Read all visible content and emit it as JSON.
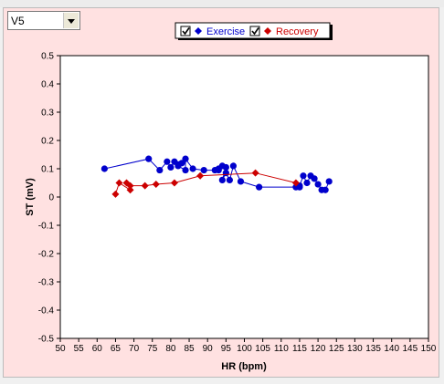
{
  "lead_select": {
    "value": "V5"
  },
  "legend": {
    "exercise_label": "Exercise",
    "recovery_label": "Recovery",
    "exercise_checked": true,
    "recovery_checked": true
  },
  "colors": {
    "exercise": "#0000cc",
    "recovery": "#cc0000",
    "panel_bg": "#ffe1e1",
    "plot_bg": "#ffffff"
  },
  "chart_data": {
    "type": "scatter",
    "xlabel": "HR (bpm)",
    "ylabel": "ST (mV)",
    "xlim": [
      50,
      150
    ],
    "ylim": [
      -0.5,
      0.5
    ],
    "xticks": [
      "50",
      "55",
      "60",
      "65",
      "70",
      "75",
      "80",
      "85",
      "90",
      "95",
      "100",
      "105",
      "110",
      "115",
      "120",
      "125",
      "130",
      "135",
      "140",
      "145",
      "150"
    ],
    "yticks": [
      "0.5",
      "0.4",
      "0.3",
      "0.2",
      "0.1",
      "0",
      "-0.1",
      "-0.2",
      "-0.3",
      "-0.4",
      "-0.5"
    ],
    "grid": false,
    "legend_position": "top-center",
    "series": [
      {
        "name": "Exercise",
        "color": "#0000cc",
        "marker": "circle",
        "points": [
          [
            62,
            0.1
          ],
          [
            74,
            0.135
          ],
          [
            77,
            0.095
          ],
          [
            79,
            0.125
          ],
          [
            80,
            0.105
          ],
          [
            81,
            0.125
          ],
          [
            82,
            0.115
          ],
          [
            83,
            0.12
          ],
          [
            82,
            0.11
          ],
          [
            84,
            0.095
          ],
          [
            84,
            0.135
          ],
          [
            86,
            0.1
          ],
          [
            89,
            0.095
          ],
          [
            92,
            0.095
          ],
          [
            93,
            0.1
          ],
          [
            93,
            0.095
          ],
          [
            94,
            0.11
          ],
          [
            95,
            0.105
          ],
          [
            94,
            0.06
          ],
          [
            95,
            0.085
          ],
          [
            96,
            0.06
          ],
          [
            97,
            0.11
          ],
          [
            99,
            0.055
          ],
          [
            104,
            0.035
          ],
          [
            114,
            0.035
          ],
          [
            115,
            0.035
          ],
          [
            115,
            0.04
          ],
          [
            116,
            0.075
          ],
          [
            117,
            0.05
          ],
          [
            118,
            0.075
          ],
          [
            119,
            0.065
          ],
          [
            120,
            0.045
          ],
          [
            121,
            0.025
          ],
          [
            122,
            0.025
          ],
          [
            123,
            0.055
          ]
        ]
      },
      {
        "name": "Recovery",
        "color": "#cc0000",
        "marker": "diamond",
        "points": [
          [
            114,
            0.05
          ],
          [
            103,
            0.085
          ],
          [
            88,
            0.075
          ],
          [
            81,
            0.05
          ],
          [
            76,
            0.045
          ],
          [
            73,
            0.04
          ],
          [
            69,
            0.04
          ],
          [
            68,
            0.05
          ],
          [
            69,
            0.025
          ],
          [
            66,
            0.05
          ],
          [
            65,
            0.01
          ]
        ]
      }
    ]
  }
}
